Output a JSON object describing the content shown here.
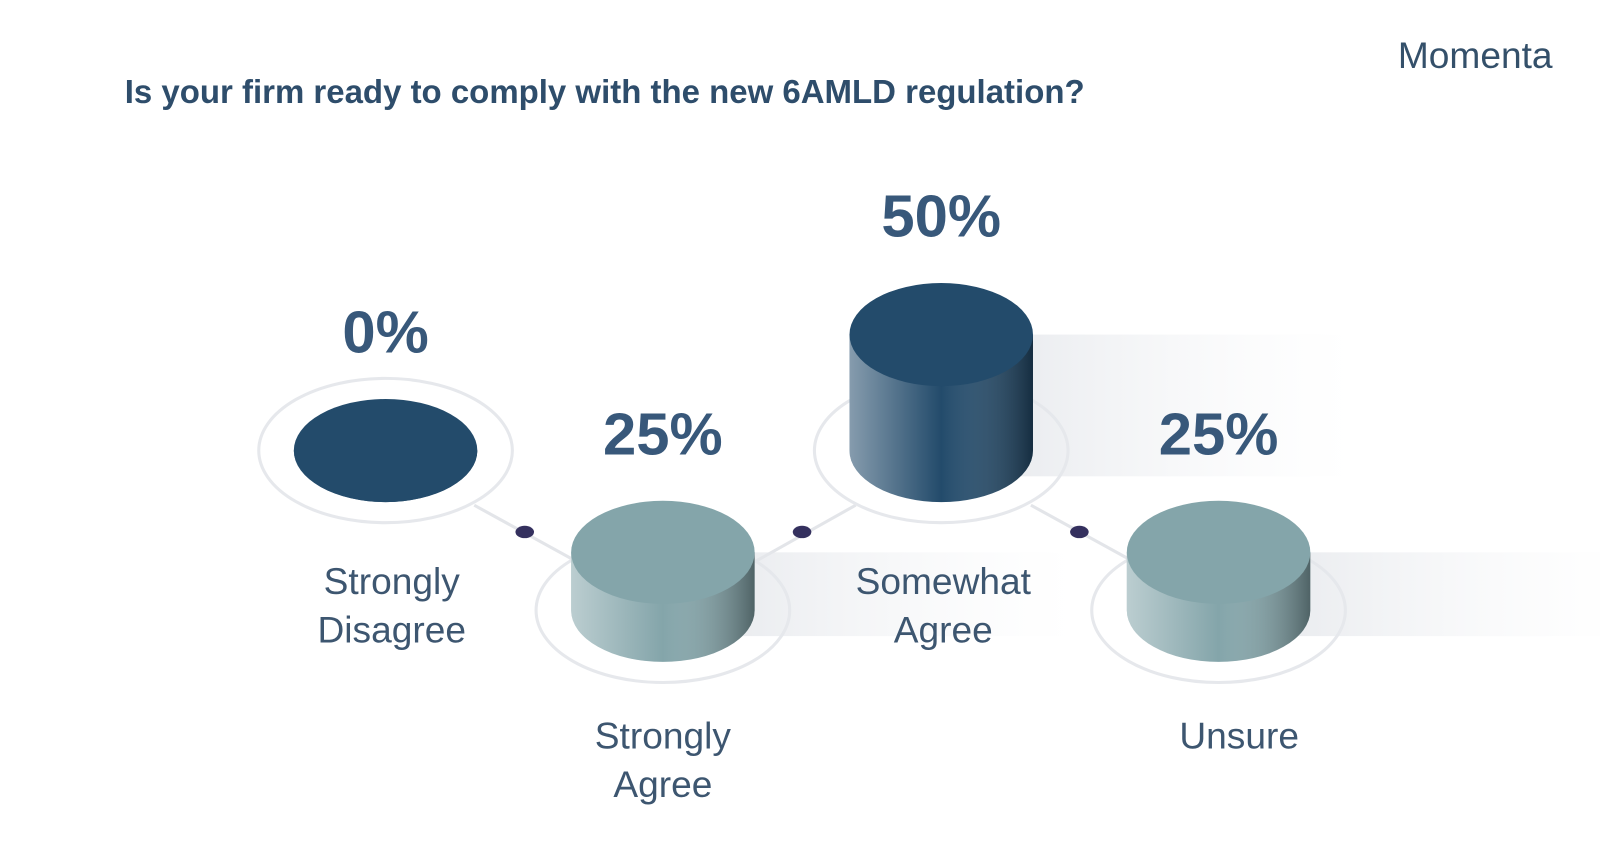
{
  "brand": "Momenta",
  "chart_data": {
    "type": "bar",
    "title": "Is your firm ready to comply with the new 6AMLD regulation?",
    "categories": [
      "Strongly Disagree",
      "Strongly Agree",
      "Somewhat Agree",
      "Unsure"
    ],
    "values": [
      0,
      25,
      50,
      25
    ],
    "value_labels": [
      "0%",
      "25%",
      "50%",
      "25%"
    ],
    "colors": [
      "#234b6b",
      "#84a5aa",
      "#234b6b",
      "#84a5aa"
    ]
  }
}
